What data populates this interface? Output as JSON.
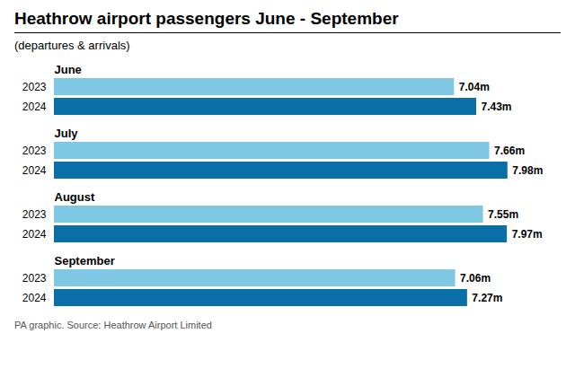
{
  "chart_data": {
    "type": "bar",
    "orientation": "horizontal",
    "title": "Heathrow airport passengers June - September",
    "subtitle": "(departures & arrivals)",
    "annotations": [
      "PA graphic. Source: Heathrow Airport Limited"
    ],
    "categories": [
      "June",
      "July",
      "August",
      "September"
    ],
    "series": [
      {
        "name": "2023",
        "color": "#7ec8e3",
        "values": [
          7.04,
          7.66,
          7.55,
          7.06
        ],
        "value_labels": [
          "7.04m",
          "7.66m",
          "7.55m",
          "7.06m"
        ]
      },
      {
        "name": "2024",
        "color": "#0a6fa6",
        "values": [
          7.43,
          7.98,
          7.97,
          7.27
        ],
        "value_labels": [
          "7.43m",
          "7.98m",
          "7.97m",
          "7.27m"
        ]
      }
    ],
    "xlim": [
      0,
      8.6
    ],
    "data_labels": true,
    "tick_labels": false,
    "grid": false
  }
}
